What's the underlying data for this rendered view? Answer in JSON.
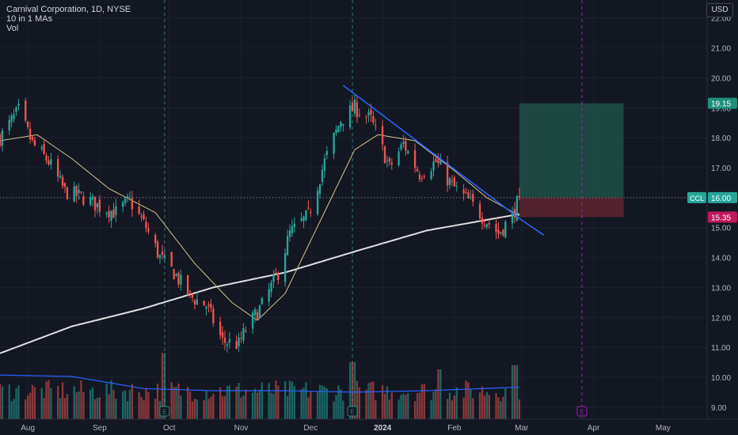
{
  "header": {
    "symbol_line": "Carnival Corporation, 1D, NYSE",
    "ma_line": "10 in 1 MAs",
    "vol_line": "Vol",
    "currency": "USD"
  },
  "colors": {
    "background": "#131722",
    "up": "#26a69a",
    "down": "#ef5350",
    "ma_fast": "#d6c38a",
    "ma_slow": "#e0e0e0",
    "trendline": "#2962ff",
    "volume_ma": "#2962ff",
    "profit_zone": "#1f4f45",
    "loss_zone": "#5a2330",
    "earnings_marker": "#2e8b7a",
    "earnings_marker_future": "#9c27b0"
  },
  "chart_data": {
    "type": "candlestick",
    "y_axis": {
      "ticks": [
        "22.00",
        "21.00",
        "20.00",
        "19.00",
        "18.00",
        "17.00",
        "16.00",
        "15.00",
        "14.00",
        "13.00",
        "12.00",
        "11.00",
        "10.00",
        "9.00"
      ],
      "range": [
        8.6,
        22.6
      ]
    },
    "x_axis": {
      "ticks": [
        "Aug",
        "Sep",
        "Oct",
        "Nov",
        "Dec",
        "2024",
        "Feb",
        "Mar",
        "Apr",
        "May"
      ],
      "range": [
        "2023-07-20",
        "2024-05-20"
      ]
    },
    "price_labels": {
      "last": "16.00",
      "ticker": "CCL",
      "target": "19.15",
      "stop": "15.35"
    },
    "position": {
      "entry": 16.0,
      "target": 19.15,
      "stop": 15.35,
      "start": "2024-02-29",
      "end": "2024-04-14"
    },
    "trendline": {
      "start": [
        "2023-12-15",
        19.75
      ],
      "end": [
        "2024-03-01",
        15.25
      ]
    },
    "vertical_markers": [
      "2023-09-29",
      "2023-12-19",
      "2024-03-27"
    ],
    "earnings": [
      {
        "date": "2023-09-29",
        "label": "E"
      },
      {
        "date": "2023-12-19",
        "label": "E"
      },
      {
        "date": "2024-03-27",
        "label": "E"
      }
    ],
    "ohlc_anchors": [
      [
        "2023-07-20",
        18.0
      ],
      [
        "2023-07-28",
        18.9
      ],
      [
        "2023-08-03",
        17.8
      ],
      [
        "2023-08-10",
        17.2
      ],
      [
        "2023-08-17",
        16.2
      ],
      [
        "2023-08-25",
        16.0
      ],
      [
        "2023-09-01",
        15.7
      ],
      [
        "2023-09-08",
        15.5
      ],
      [
        "2023-09-14",
        15.9
      ],
      [
        "2023-09-21",
        15.0
      ],
      [
        "2023-09-27",
        14.0
      ],
      [
        "2023-10-03",
        13.5
      ],
      [
        "2023-10-10",
        12.7
      ],
      [
        "2023-10-17",
        12.4
      ],
      [
        "2023-10-24",
        11.2
      ],
      [
        "2023-10-31",
        11.1
      ],
      [
        "2023-11-03",
        11.6
      ],
      [
        "2023-11-10",
        12.4
      ],
      [
        "2023-11-17",
        13.5
      ],
      [
        "2023-11-22",
        14.8
      ],
      [
        "2023-11-30",
        15.4
      ],
      [
        "2023-12-07",
        17.2
      ],
      [
        "2023-12-14",
        18.6
      ],
      [
        "2023-12-20",
        19.0
      ],
      [
        "2023-12-27",
        18.6
      ],
      [
        "2024-01-04",
        17.0
      ],
      [
        "2024-01-10",
        17.8
      ],
      [
        "2024-01-17",
        16.8
      ],
      [
        "2024-01-24",
        17.2
      ],
      [
        "2024-01-31",
        16.4
      ],
      [
        "2024-02-07",
        15.9
      ],
      [
        "2024-02-14",
        15.3
      ],
      [
        "2024-02-20",
        14.8
      ],
      [
        "2024-02-26",
        15.4
      ],
      [
        "2024-02-29",
        16.0
      ]
    ],
    "ma_fast_anchors": [
      [
        "2023-07-20",
        17.9
      ],
      [
        "2023-08-05",
        18.1
      ],
      [
        "2023-08-20",
        17.3
      ],
      [
        "2023-09-05",
        16.3
      ],
      [
        "2023-09-25",
        15.5
      ],
      [
        "2023-10-12",
        13.8
      ],
      [
        "2023-10-28",
        12.5
      ],
      [
        "2023-11-08",
        11.9
      ],
      [
        "2023-11-20",
        12.8
      ],
      [
        "2023-12-05",
        15.2
      ],
      [
        "2023-12-20",
        17.6
      ],
      [
        "2023-12-30",
        18.1
      ],
      [
        "2024-01-15",
        17.9
      ],
      [
        "2024-02-01",
        16.9
      ],
      [
        "2024-02-15",
        16.0
      ],
      [
        "2024-02-29",
        15.4
      ]
    ],
    "ma_slow_anchors": [
      [
        "2023-07-20",
        10.8
      ],
      [
        "2023-08-20",
        11.7
      ],
      [
        "2023-09-20",
        12.3
      ],
      [
        "2023-10-20",
        13.0
      ],
      [
        "2023-11-20",
        13.5
      ],
      [
        "2023-12-20",
        14.2
      ],
      [
        "2024-01-20",
        14.9
      ],
      [
        "2024-02-29",
        15.45
      ]
    ],
    "volume_ma_anchors": [
      [
        "2023-07-20",
        0.62
      ],
      [
        "2023-08-20",
        0.6
      ],
      [
        "2023-09-20",
        0.43
      ],
      [
        "2023-10-20",
        0.4
      ],
      [
        "2023-11-20",
        0.4
      ],
      [
        "2023-12-20",
        0.38
      ],
      [
        "2024-01-20",
        0.4
      ],
      [
        "2024-02-29",
        0.45
      ]
    ],
    "volume_spikes": [
      [
        "2023-09-29",
        0.93
      ],
      [
        "2023-12-19",
        0.8
      ],
      [
        "2024-01-26",
        0.7
      ],
      [
        "2024-02-27",
        0.76
      ]
    ]
  }
}
